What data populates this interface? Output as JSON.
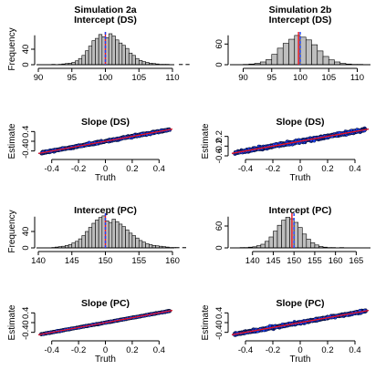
{
  "chart_data": [
    {
      "type": "bar",
      "title": "Simulation 2a",
      "subtitle": "Intercept (DS)",
      "xlabel": "",
      "ylabel": "Frequency",
      "xlim": [
        90,
        110
      ],
      "ylim": [
        0,
        80
      ],
      "xticks": [
        90,
        95,
        100,
        105,
        110
      ],
      "yticks": [
        0,
        40
      ],
      "bin_width": 0.5,
      "bin_start": 92,
      "counts": [
        1,
        0,
        1,
        2,
        3,
        4,
        6,
        10,
        16,
        24,
        36,
        48,
        62,
        68,
        78,
        72,
        70,
        80,
        74,
        64,
        56,
        50,
        42,
        30,
        24,
        16,
        11,
        8,
        6,
        4,
        3,
        2,
        1,
        1,
        1,
        0,
        0,
        0,
        1,
        0,
        1,
        0,
        0,
        0,
        0,
        0
      ],
      "vlines": [
        {
          "x": 100,
          "color": "#e8131f",
          "style": "solid"
        },
        {
          "x": 100,
          "color": "#1b3ff2",
          "style": "dashed"
        }
      ]
    },
    {
      "type": "bar",
      "title": "Simulation 2b",
      "subtitle": "Intercept (DS)",
      "xlabel": "",
      "ylabel": "",
      "xlim": [
        88,
        112
      ],
      "ylim": [
        0,
        90
      ],
      "xticks": [
        90,
        95,
        100,
        105,
        110
      ],
      "yticks": [
        0,
        60
      ],
      "bin_width": 1,
      "bin_start": 90,
      "counts": [
        1,
        2,
        4,
        8,
        15,
        30,
        48,
        62,
        74,
        85,
        80,
        72,
        58,
        40,
        24,
        14,
        8,
        4,
        2,
        1,
        1,
        0
      ],
      "vlines": [
        {
          "x": 99.7,
          "color": "#e8131f",
          "style": "solid"
        },
        {
          "x": 100,
          "color": "#1b3ff2",
          "style": "dashed"
        }
      ]
    },
    {
      "type": "scatter",
      "title": "Slope (DS)",
      "xlabel": "Truth",
      "ylabel": "Estimate",
      "xlim": [
        -0.5,
        0.5
      ],
      "ylim": [
        -0.6,
        0.6
      ],
      "xticks": [
        -0.4,
        -0.2,
        0.0,
        0.2,
        0.4
      ],
      "yticks": [
        -0.4,
        0.0,
        0.4
      ],
      "point_count": 1000,
      "noise_sd": 0.02,
      "lines": [
        {
          "intercept": 0,
          "slope": 1,
          "color": "#1b3ff2",
          "style": "dashed"
        },
        {
          "intercept": 0,
          "slope": 1,
          "color": "#e8131f",
          "style": "solid"
        }
      ]
    },
    {
      "type": "scatter",
      "title": "Slope (DS)",
      "xlabel": "Truth",
      "ylabel": "Estimate",
      "xlim": [
        -0.5,
        0.5
      ],
      "ylim": [
        -0.6,
        0.6
      ],
      "xticks": [
        -0.4,
        -0.2,
        0.0,
        0.2,
        0.4
      ],
      "yticks": [
        -0.6,
        -0.2,
        0.2
      ],
      "point_count": 1000,
      "noise_sd": 0.03,
      "lines": [
        {
          "intercept": 0,
          "slope": 1,
          "color": "#1b3ff2",
          "style": "dashed"
        },
        {
          "intercept": 0,
          "slope": 1,
          "color": "#e8131f",
          "style": "solid"
        }
      ]
    },
    {
      "type": "bar",
      "title": "Intercept (PC)",
      "xlabel": "",
      "ylabel": "Frequency",
      "xlim": [
        140,
        160
      ],
      "ylim": [
        0,
        80
      ],
      "xticks": [
        140,
        145,
        150,
        155,
        160
      ],
      "yticks": [
        0,
        40
      ],
      "bin_width": 0.5,
      "bin_start": 142,
      "counts": [
        1,
        2,
        3,
        4,
        6,
        8,
        12,
        16,
        22,
        30,
        40,
        50,
        60,
        68,
        74,
        78,
        66,
        62,
        70,
        64,
        58,
        52,
        44,
        36,
        30,
        24,
        18,
        14,
        10,
        8,
        6,
        5,
        4,
        3,
        2,
        1,
        1,
        1,
        0,
        1
      ],
      "vlines": [
        {
          "x": 150,
          "color": "#e8131f",
          "style": "solid"
        },
        {
          "x": 150,
          "color": "#1b3ff2",
          "style": "dashed"
        }
      ]
    },
    {
      "type": "bar",
      "title": "Intercept (PC)",
      "xlabel": "",
      "ylabel": "",
      "xlim": [
        135,
        168
      ],
      "ylim": [
        0,
        90
      ],
      "xticks": [
        140,
        145,
        150,
        155,
        160,
        165
      ],
      "yticks": [
        0,
        60
      ],
      "bin_width": 1,
      "bin_start": 137,
      "counts": [
        1,
        1,
        2,
        3,
        6,
        10,
        18,
        30,
        46,
        62,
        76,
        84,
        80,
        70,
        56,
        38,
        24,
        14,
        8,
        4,
        2,
        1,
        1,
        0,
        1,
        0,
        0,
        0,
        0
      ],
      "vlines": [
        {
          "x": 149.5,
          "color": "#e8131f",
          "style": "solid"
        },
        {
          "x": 150,
          "color": "#1b3ff2",
          "style": "dashed"
        }
      ]
    },
    {
      "type": "scatter",
      "title": "Slope (PC)",
      "xlabel": "Truth",
      "ylabel": "Estimate",
      "xlim": [
        -0.5,
        0.5
      ],
      "ylim": [
        -0.6,
        0.6
      ],
      "xticks": [
        -0.4,
        -0.2,
        0.0,
        0.2,
        0.4
      ],
      "yticks": [
        -0.4,
        0.0,
        0.4
      ],
      "point_count": 1000,
      "noise_sd": 0.008,
      "lines": [
        {
          "intercept": 0,
          "slope": 1,
          "color": "#1b3ff2",
          "style": "dashed"
        },
        {
          "intercept": 0,
          "slope": 1,
          "color": "#e8131f",
          "style": "solid"
        }
      ]
    },
    {
      "type": "scatter",
      "title": "Slope (PC)",
      "xlabel": "Truth",
      "ylabel": "Estimate",
      "xlim": [
        -0.5,
        0.5
      ],
      "ylim": [
        -0.6,
        0.6
      ],
      "xticks": [
        -0.4,
        -0.2,
        0.0,
        0.2,
        0.4
      ],
      "yticks": [
        -0.4,
        0.0,
        0.4
      ],
      "point_count": 1000,
      "noise_sd": 0.022,
      "lines": [
        {
          "intercept": 0,
          "slope": 1,
          "color": "#1b3ff2",
          "style": "dashed"
        },
        {
          "intercept": 0,
          "slope": 1,
          "color": "#e8131f",
          "style": "solid"
        }
      ]
    }
  ],
  "colors": {
    "bar_fill": "#bebebe",
    "bar_stroke": "#000000",
    "point_fill": "#1b3ff2",
    "point_stroke": "#000000",
    "axis": "#000000"
  }
}
